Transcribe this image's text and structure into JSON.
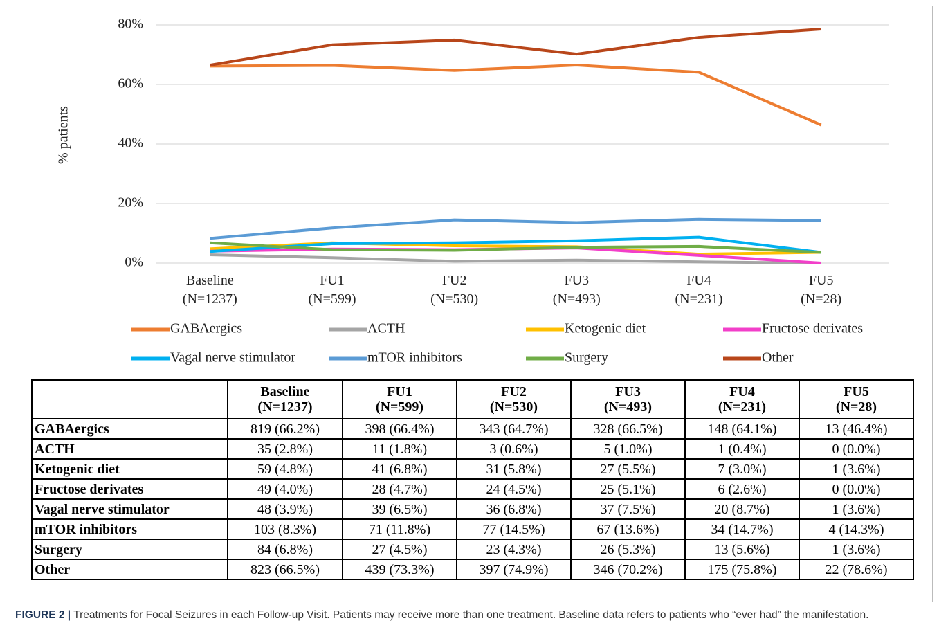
{
  "chart_data": {
    "type": "line",
    "ylabel": "% patients",
    "categories": [
      "Baseline\n(N=1237)",
      "FU1\n(N=599)",
      "FU2\n(N=530)",
      "FU3\n(N=493)",
      "FU4\n(N=231)",
      "FU5\n(N=28)"
    ],
    "ylim": [
      0,
      80
    ],
    "yticks": [
      {
        "value": 0,
        "label": "0%"
      },
      {
        "value": 20,
        "label": "20%"
      },
      {
        "value": 40,
        "label": "40%"
      },
      {
        "value": 60,
        "label": "60%"
      },
      {
        "value": 80,
        "label": "80%"
      }
    ],
    "grid": true,
    "legend": "bottom",
    "series": [
      {
        "name": "GABAergics",
        "color": "#ed7d31",
        "values": [
          66.2,
          66.4,
          64.7,
          66.5,
          64.1,
          46.4
        ]
      },
      {
        "name": "ACTH",
        "color": "#a5a5a5",
        "values": [
          2.8,
          1.8,
          0.6,
          1.0,
          0.4,
          0.0
        ]
      },
      {
        "name": "Ketogenic diet",
        "color": "#ffc000",
        "values": [
          4.8,
          6.8,
          5.8,
          5.5,
          3.0,
          3.6
        ]
      },
      {
        "name": "Fructose derivates",
        "color": "#f23fc9",
        "values": [
          4.0,
          4.7,
          4.5,
          5.1,
          2.6,
          0.0
        ]
      },
      {
        "name": "Vagal nerve stimulator",
        "color": "#00b0f0",
        "values": [
          3.9,
          6.5,
          6.8,
          7.5,
          8.7,
          3.6
        ]
      },
      {
        "name": "mTOR inhibitors",
        "color": "#5b9bd5",
        "values": [
          8.3,
          11.8,
          14.5,
          13.6,
          14.7,
          14.3
        ]
      },
      {
        "name": "Surgery",
        "color": "#70ad47",
        "values": [
          6.8,
          4.5,
          4.3,
          5.3,
          5.6,
          3.6
        ]
      },
      {
        "name": "Other",
        "color": "#b8461a",
        "values": [
          66.5,
          73.3,
          74.9,
          70.2,
          75.8,
          78.6
        ]
      }
    ]
  },
  "table": {
    "header": [
      "Baseline\n(N=1237)",
      "FU1\n(N=599)",
      "FU2\n(N=530)",
      "FU3\n(N=493)",
      "FU4\n(N=231)",
      "FU5\n(N=28)"
    ],
    "rows": [
      [
        "GABAergics",
        "819 (66.2%)",
        "398 (66.4%)",
        "343 (64.7%)",
        "328 (66.5%)",
        "148 (64.1%)",
        "13 (46.4%)"
      ],
      [
        "ACTH",
        "35 (2.8%)",
        "11 (1.8%)",
        "3 (0.6%)",
        "5 (1.0%)",
        "1 (0.4%)",
        "0 (0.0%)"
      ],
      [
        "Ketogenic diet",
        "59 (4.8%)",
        "41 (6.8%)",
        "31 (5.8%)",
        "27 (5.5%)",
        "7 (3.0%)",
        "1 (3.6%)"
      ],
      [
        "Fructose derivates",
        "49 (4.0%)",
        "28 (4.7%)",
        "24 (4.5%)",
        "25 (5.1%)",
        "6 (2.6%)",
        "0 (0.0%)"
      ],
      [
        "Vagal nerve stimulator",
        "48 (3.9%)",
        "39 (6.5%)",
        "36 (6.8%)",
        "37 (7.5%)",
        "20 (8.7%)",
        "1 (3.6%)"
      ],
      [
        "mTOR inhibitors",
        "103 (8.3%)",
        "71 (11.8%)",
        "77 (14.5%)",
        "67 (13.6%)",
        "34 (14.7%)",
        "4 (14.3%)"
      ],
      [
        "Surgery",
        "84 (6.8%)",
        "27 (4.5%)",
        "23 (4.3%)",
        "26 (5.3%)",
        "13 (5.6%)",
        "1 (3.6%)"
      ],
      [
        "Other",
        "823 (66.5%)",
        "439 (73.3%)",
        "397 (74.9%)",
        "346 (70.2%)",
        "175 (75.8%)",
        "22 (78.6%)"
      ]
    ]
  },
  "caption": {
    "label": "FIGURE 2 |",
    "text": "Treatments for Focal Seizures in each Follow-up Visit. Patients may receive more than one treatment. Baseline data refers to patients who “ever had” the manifestation."
  }
}
